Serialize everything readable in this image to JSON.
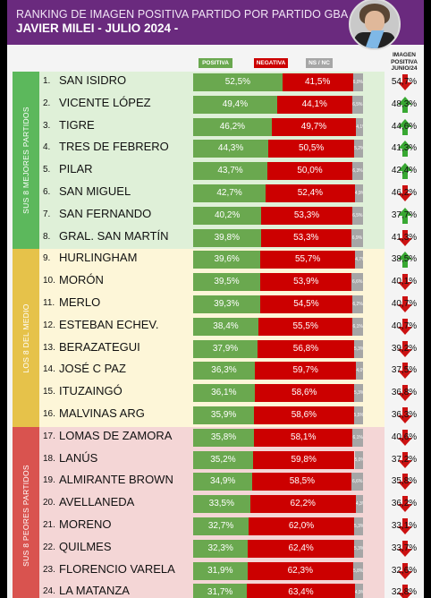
{
  "header": {
    "title_line1": "RANKING DE IMAGEN POSITIVA PARTIDO POR PARTIDO GBA",
    "title_line2": "JAVIER MILEI - JULIO 2024 -"
  },
  "legend": {
    "positiva": "POSITIVA",
    "negativa": "NEGATIVA",
    "nsnc": "NS / NC"
  },
  "column_header": {
    "line1": "IMAGEN",
    "line2": "POSITIVA",
    "line3": "JUNIO/24"
  },
  "colors": {
    "positiva": "#6aa84f",
    "negativa": "#cc0000",
    "nsnc": "#a6a6a6",
    "arrow_up": "#38a832",
    "arrow_down": "#cc1111",
    "section_top_bg": "#dff0d8",
    "section_mid_bg": "#fdf6d8",
    "section_bottom_bg": "#f4d6d6",
    "section_top_label": "#5cb85c",
    "section_mid_label": "#e6c24a",
    "section_bottom_label": "#d9534f"
  },
  "sections": [
    {
      "label": "SUS 8 MEJORES PARTIDOS",
      "rows": [
        1,
        8
      ]
    },
    {
      "label": "LOS 8 DEL MEDIO",
      "rows": [
        9,
        16
      ]
    },
    {
      "label": "SUS 8 PEORES PARTIDOS",
      "rows": [
        17,
        24
      ]
    }
  ],
  "chart_data": {
    "type": "bar",
    "title": "RANKING DE IMAGEN POSITIVA PARTIDO POR PARTIDO GBA",
    "subtitle": "JAVIER MILEI - JULIO 2024 -",
    "stacked": true,
    "categories": [
      "SAN ISIDRO",
      "VICENTE LÓPEZ",
      "TIGRE",
      "TRES DE FEBRERO",
      "PILAR",
      "SAN MIGUEL",
      "SAN FERNANDO",
      "GRAL. SAN MARTÍN",
      "HURLINGHAM",
      "MORÓN",
      "MERLO",
      "ESTEBAN ECHEV.",
      "BERAZATEGUI",
      "JOSÉ C PAZ",
      "ITUZAINGÓ",
      "MALVINAS ARG",
      "LOMAS DE ZAMORA",
      "LANÚS",
      "ALMIRANTE BROWN",
      "AVELLANEDA",
      "MORENO",
      "QUILMES",
      "FLORENCIO VARELA",
      "LA MATANZA"
    ],
    "series": [
      {
        "name": "POSITIVA",
        "values": [
          52.5,
          49.4,
          46.2,
          44.3,
          43.7,
          42.7,
          40.2,
          39.8,
          39.6,
          39.5,
          39.3,
          38.4,
          37.9,
          36.3,
          36.1,
          35.9,
          35.8,
          35.2,
          34.9,
          33.5,
          32.7,
          32.3,
          31.9,
          31.7
        ]
      },
      {
        "name": "NEGATIVA",
        "values": [
          41.5,
          44.1,
          49.7,
          50.5,
          50.0,
          52.4,
          53.3,
          53.3,
          55.7,
          53.9,
          54.5,
          55.5,
          56.8,
          59.7,
          58.6,
          58.6,
          58.1,
          59.8,
          58.5,
          62.2,
          62.0,
          62.4,
          62.3,
          63.4
        ]
      },
      {
        "name": "NS / NC",
        "values": [
          6.0,
          6.5,
          4.1,
          5.2,
          6.3,
          4.9,
          6.5,
          6.9,
          4.7,
          6.6,
          6.2,
          6.1,
          5.3,
          4.0,
          5.3,
          5.5,
          6.1,
          5.0,
          6.6,
          4.3,
          5.3,
          5.3,
          5.8,
          4.9
        ]
      },
      {
        "name": "IMAGEN POSITIVA JUNIO/24",
        "values": [
          54.7,
          48.3,
          44.6,
          41.3,
          42.4,
          46.2,
          37.7,
          41.3,
          38.5,
          40.1,
          40.7,
          40.7,
          39.2,
          37.5,
          36.8,
          36.3,
          40.6,
          37.2,
          35.8,
          36.2,
          33.1,
          33.7,
          32.6,
          32.8
        ]
      }
    ],
    "trend": [
      "down",
      "up",
      "up",
      "up",
      "up",
      "down",
      "up",
      "down",
      "up",
      "down",
      "down",
      "down",
      "down",
      "down",
      "down",
      "down",
      "down",
      "down",
      "down",
      "down",
      "down",
      "down",
      "down",
      "down"
    ],
    "value_labels": {
      "positiva": [
        "52,5%",
        "49,4%",
        "46,2%",
        "44,3%",
        "43,7%",
        "42,7%",
        "40,2%",
        "39,8%",
        "39,6%",
        "39,5%",
        "39,3%",
        "38,4%",
        "37,9%",
        "36,3%",
        "36,1%",
        "35,9%",
        "35,8%",
        "35,2%",
        "34,9%",
        "33,5%",
        "32,7%",
        "32,3%",
        "31,9%",
        "31,7%"
      ],
      "negativa": [
        "41,5%",
        "44,1%",
        "49,7%",
        "50,5%",
        "50,0%",
        "52,4%",
        "53,3%",
        "53,3%",
        "55,7%",
        "53,9%",
        "54,5%",
        "55,5%",
        "56,8%",
        "59,7%",
        "58,6%",
        "58,6%",
        "58,1%",
        "59,8%",
        "58,5%",
        "62,2%",
        "62,0%",
        "62,4%",
        "62,3%",
        "63,4%"
      ],
      "nsnc": [
        "6,0%",
        "6,5%",
        "4,1%",
        "5,2%",
        "6,3%",
        "4,9%",
        "6,5%",
        "6,9%",
        "4,7%",
        "6,6%",
        "6,2%",
        "6,1%",
        "5,3%",
        "4,0%",
        "5,3%",
        "5,5%",
        "6,1%",
        "5,0%",
        "6,6%",
        "4,3%",
        "5,3%",
        "5,3%",
        "5,8%",
        "4,9%"
      ],
      "junio": [
        "54,7%",
        "48,3%",
        "44,6%",
        "41,3%",
        "42,4%",
        "46,2%",
        "37,7%",
        "41,3%",
        "38,5%",
        "40,1%",
        "40,7%",
        "40,7%",
        "39,2%",
        "37,5%",
        "36,8%",
        "36,3%",
        "40,6%",
        "37,2%",
        "35,8%",
        "36,2%",
        "33,1%",
        "33,7%",
        "32,6%",
        "32,8%"
      ]
    }
  }
}
